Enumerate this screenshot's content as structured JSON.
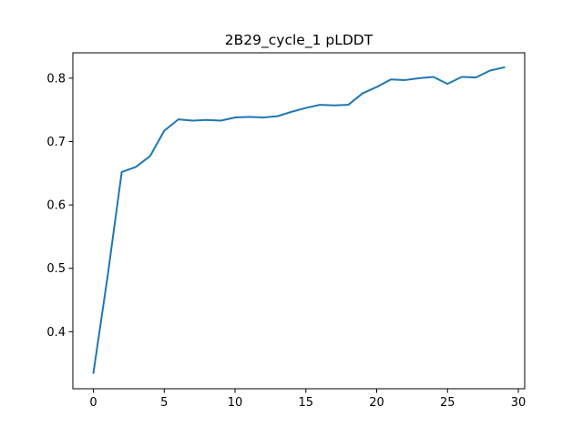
{
  "chart_data": {
    "type": "line",
    "title": "2B29_cycle_1 pLDDT",
    "xlabel": "",
    "ylabel": "",
    "xlim": [
      -1.45,
      30.45
    ],
    "ylim": [
      0.31,
      0.84
    ],
    "xticks": [
      0,
      5,
      10,
      15,
      20,
      25,
      30
    ],
    "xtick_labels": [
      "0",
      "5",
      "10",
      "15",
      "20",
      "25",
      "30"
    ],
    "yticks": [
      0.4,
      0.5,
      0.6,
      0.7,
      0.8
    ],
    "ytick_labels": [
      "0.4",
      "0.5",
      "0.6",
      "0.7",
      "0.8"
    ],
    "grid": false,
    "series": [
      {
        "color": "#1f77b4",
        "x": [
          0,
          1,
          2,
          3,
          4,
          5,
          6,
          7,
          8,
          9,
          10,
          11,
          12,
          13,
          14,
          15,
          16,
          17,
          18,
          19,
          20,
          21,
          22,
          23,
          24,
          25,
          26,
          27,
          28,
          29
        ],
        "y": [
          0.335,
          0.487,
          0.652,
          0.66,
          0.677,
          0.717,
          0.735,
          0.733,
          0.734,
          0.733,
          0.738,
          0.739,
          0.738,
          0.74,
          0.747,
          0.753,
          0.758,
          0.757,
          0.758,
          0.776,
          0.786,
          0.798,
          0.797,
          0.8,
          0.802,
          0.791,
          0.802,
          0.801,
          0.812,
          0.817
        ]
      }
    ]
  }
}
